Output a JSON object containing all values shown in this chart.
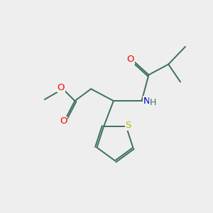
{
  "bg_color": "#eeeeee",
  "bond_color": "#3d7060",
  "atom_colors": {
    "O": "#ff0000",
    "N": "#0000cc",
    "S": "#bbbb00",
    "H": "#3d7060",
    "C": "#3d7060"
  },
  "fig_size": [
    3.0,
    3.0
  ],
  "dpi": 100,
  "bond_lw": 1.4,
  "font_size": 9.5
}
